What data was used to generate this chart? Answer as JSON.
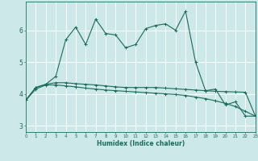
{
  "xlabel": "Humidex (Indice chaleur)",
  "background_color": "#cce8e8",
  "grid_color": "#b0d8d8",
  "line_color": "#1a6b5a",
  "x_values": [
    0,
    1,
    2,
    3,
    4,
    5,
    6,
    7,
    8,
    9,
    10,
    11,
    12,
    13,
    14,
    15,
    16,
    17,
    18,
    19,
    20,
    21,
    22,
    23
  ],
  "series1": [
    3.8,
    4.2,
    4.3,
    4.55,
    5.7,
    6.1,
    5.55,
    6.35,
    5.9,
    5.85,
    5.45,
    5.55,
    6.05,
    6.15,
    6.2,
    6.0,
    6.6,
    5.0,
    4.1,
    4.15,
    3.65,
    3.75,
    3.3,
    3.3
  ],
  "series2": [
    3.8,
    4.2,
    4.3,
    4.35,
    4.35,
    4.32,
    4.3,
    4.28,
    4.25,
    4.22,
    4.2,
    4.2,
    4.2,
    4.2,
    4.18,
    4.16,
    4.14,
    4.12,
    4.1,
    4.08,
    4.07,
    4.06,
    4.05,
    3.3
  ],
  "series3": [
    3.8,
    4.15,
    4.28,
    4.28,
    4.25,
    4.22,
    4.18,
    4.15,
    4.12,
    4.1,
    4.08,
    4.06,
    4.04,
    4.02,
    4.0,
    3.98,
    3.95,
    3.9,
    3.85,
    3.78,
    3.7,
    3.6,
    3.45,
    3.3
  ],
  "ylim": [
    2.8,
    6.9
  ],
  "xlim": [
    0,
    23
  ],
  "yticks": [
    3,
    4,
    5,
    6
  ],
  "xticks": [
    0,
    1,
    2,
    3,
    4,
    5,
    6,
    7,
    8,
    9,
    10,
    11,
    12,
    13,
    14,
    15,
    16,
    17,
    18,
    19,
    20,
    21,
    22,
    23
  ]
}
